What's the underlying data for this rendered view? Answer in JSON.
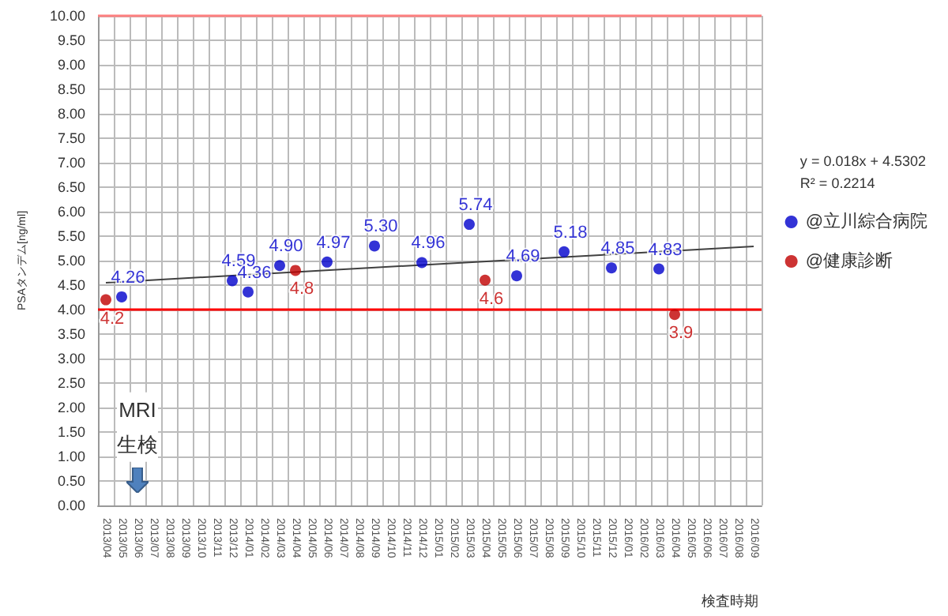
{
  "chart_data": {
    "type": "scatter",
    "xlabel": "検査時期",
    "ylabel": "PSAタンデム[ng/ml]",
    "categories": [
      "2013/04",
      "2013/05",
      "2013/06",
      "2013/07",
      "2013/08",
      "2013/09",
      "2013/10",
      "2013/11",
      "2013/12",
      "2014/01",
      "2014/02",
      "2014/03",
      "2014/04",
      "2014/05",
      "2014/06",
      "2014/07",
      "2014/08",
      "2014/09",
      "2014/10",
      "2014/11",
      "2014/12",
      "2015/01",
      "2015/02",
      "2015/03",
      "2015/04",
      "2015/05",
      "2015/06",
      "2015/07",
      "2015/08",
      "2015/09",
      "2015/10",
      "2015/11",
      "2015/12",
      "2016/01",
      "2016/02",
      "2016/03",
      "2016/04",
      "2016/05",
      "2016/06",
      "2016/07",
      "2016/08",
      "2016/09"
    ],
    "series": [
      {
        "name": "@立川綜合病院",
        "color": "#0000cc",
        "value_labels": [
          null,
          "4.26",
          null,
          null,
          null,
          null,
          null,
          null,
          "4.59",
          "4.36",
          null,
          "4.90",
          null,
          null,
          "4.97",
          null,
          null,
          "5.30",
          null,
          null,
          "4.96",
          null,
          null,
          "5.74",
          null,
          null,
          "4.69",
          null,
          null,
          "5.18",
          null,
          null,
          "4.85",
          null,
          null,
          "4.83",
          null,
          null,
          null,
          null,
          null,
          null
        ],
        "values": [
          null,
          4.26,
          null,
          null,
          null,
          null,
          null,
          null,
          4.59,
          4.36,
          null,
          4.9,
          null,
          null,
          4.97,
          null,
          null,
          5.3,
          null,
          null,
          4.96,
          null,
          null,
          5.74,
          null,
          null,
          4.69,
          null,
          null,
          5.18,
          null,
          null,
          4.85,
          null,
          null,
          4.83,
          null,
          null,
          null,
          null,
          null,
          null
        ]
      },
      {
        "name": "@健康診断",
        "color": "#c00000",
        "value_labels": [
          "4.2",
          null,
          null,
          null,
          null,
          null,
          null,
          null,
          null,
          null,
          null,
          null,
          "4.8",
          null,
          null,
          null,
          null,
          null,
          null,
          null,
          null,
          null,
          null,
          null,
          "4.6",
          null,
          null,
          null,
          null,
          null,
          null,
          null,
          null,
          null,
          null,
          null,
          "3.9",
          null,
          null,
          null,
          null,
          null
        ],
        "values": [
          4.2,
          null,
          null,
          null,
          null,
          null,
          null,
          null,
          null,
          null,
          null,
          null,
          4.8,
          null,
          null,
          null,
          null,
          null,
          null,
          null,
          null,
          null,
          null,
          null,
          4.6,
          null,
          null,
          null,
          null,
          null,
          null,
          null,
          null,
          null,
          null,
          null,
          3.9,
          null,
          null,
          null,
          null,
          null
        ]
      },
      {
        "type": "line",
        "color": "#404040",
        "marker": "none",
        "x": [
          "2013/04",
          "2016/09"
        ],
        "values": [
          4.55,
          5.29
        ]
      }
    ],
    "ylim": [
      0,
      10
    ],
    "yticks": [
      {
        "value": 0,
        "label": "0.00"
      },
      {
        "value": 0.5,
        "label": "0.50"
      },
      {
        "value": 1,
        "label": "1.00"
      },
      {
        "value": 1.5,
        "label": "1.50"
      },
      {
        "value": 2,
        "label": "2.00"
      },
      {
        "value": 2.5,
        "label": "2.50"
      },
      {
        "value": 3,
        "label": "3.00"
      },
      {
        "value": 3.5,
        "label": "3.50"
      },
      {
        "value": 4,
        "label": "4.00"
      },
      {
        "value": 4.5,
        "label": "4.50"
      },
      {
        "value": 5,
        "label": "5.00"
      },
      {
        "value": 5.5,
        "label": "5.50"
      },
      {
        "value": 6,
        "label": "6.00"
      },
      {
        "value": 6.5,
        "label": "6.50"
      },
      {
        "value": 7,
        "label": "7.00"
      },
      {
        "value": 7.5,
        "label": "7.50"
      },
      {
        "value": 8,
        "label": "8.00"
      },
      {
        "value": 8.5,
        "label": "8.50"
      },
      {
        "value": 9,
        "label": "9.00"
      },
      {
        "value": 9.5,
        "label": "9.50"
      },
      {
        "value": 10,
        "label": "10.00"
      }
    ],
    "ref_lines": [
      {
        "axis": "y",
        "value": 4,
        "color": "#ff0000"
      },
      {
        "axis": "y",
        "value": 10,
        "color": "#ff8080"
      }
    ],
    "annotations": [
      "y = 0.018x + 4.5302\nR² = 0.2214",
      {
        "text": "MRI\n生検",
        "x": "2013/06",
        "y": 1.6
      }
    ],
    "grid": true,
    "legend": "right",
    "marker": "circle"
  }
}
